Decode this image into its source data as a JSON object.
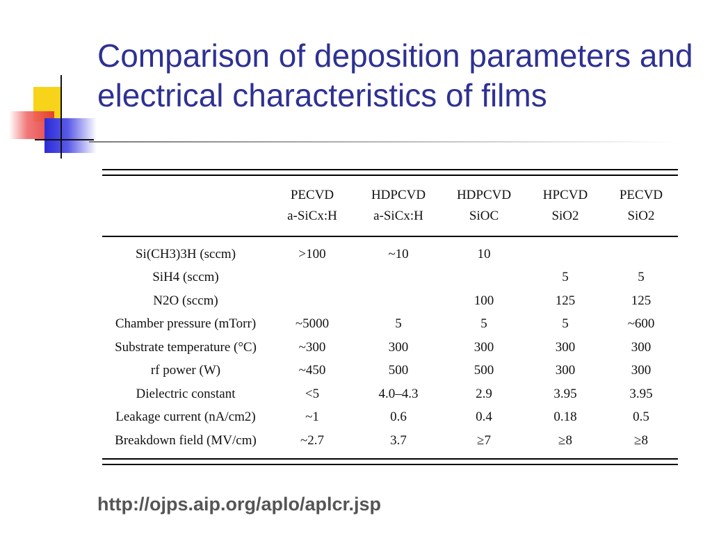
{
  "title": "Comparison of deposition parameters and electrical characteristics of films",
  "table": {
    "headers": [
      {
        "line1": "",
        "line2": ""
      },
      {
        "line1": "PECVD",
        "line2": "a-SiCx:H"
      },
      {
        "line1": "HDPCVD",
        "line2": "a-SiCx:H"
      },
      {
        "line1": "HDPCVD",
        "line2": "SiOC"
      },
      {
        "line1": "HPCVD",
        "line2": "SiO2"
      },
      {
        "line1": "PECVD",
        "line2": "SiO2"
      }
    ],
    "rows": [
      [
        "Si(CH3)3H (sccm)",
        ">100",
        "~10",
        "10",
        "",
        ""
      ],
      [
        "SiH4 (sccm)",
        "",
        "",
        "",
        "5",
        "5"
      ],
      [
        "N2O (sccm)",
        "",
        "",
        "100",
        "125",
        "125"
      ],
      [
        "Chamber pressure (mTorr)",
        "~5000",
        "5",
        "5",
        "5",
        "~600"
      ],
      [
        "Substrate temperature (°C)",
        "~300",
        "300",
        "300",
        "300",
        "300"
      ],
      [
        "rf power (W)",
        "~450",
        "500",
        "500",
        "300",
        "300"
      ],
      [
        "Dielectric constant",
        "<5",
        "4.0–4.3",
        "2.9",
        "3.95",
        "3.95"
      ],
      [
        "Leakage current (nA/cm2)",
        "~1",
        "0.6",
        "0.4",
        "0.18",
        "0.5"
      ],
      [
        "Breakdown field (MV/cm)",
        "~2.7",
        "3.7",
        "≥7",
        "≥8",
        "≥8"
      ]
    ]
  },
  "source_url": "http://ojps.aip.org/aplo/aplcr.jsp",
  "colors": {
    "title": "#2e3192",
    "url": "#555555"
  }
}
